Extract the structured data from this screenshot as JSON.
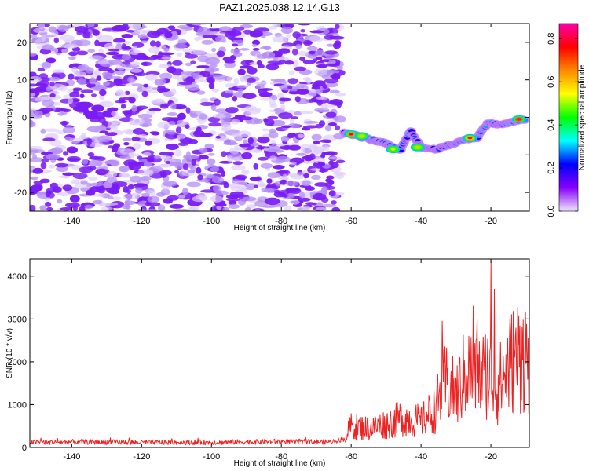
{
  "figure": {
    "title": "PAZ1.2025.038.12.14.G13"
  },
  "chart_data": [
    {
      "type": "heatmap",
      "xlabel": "Height of straight line (km)",
      "ylabel": "Frequency (Hz)",
      "xlim": [
        -152,
        -9
      ],
      "ylim": [
        -25,
        25
      ],
      "xticks": [
        -140,
        -120,
        -100,
        -80,
        -60,
        -40,
        -20
      ],
      "yticks": [
        -20,
        -10,
        0,
        10,
        20
      ],
      "colorbar": {
        "label": "Normalized spectral amplitude",
        "range": [
          0.0,
          0.87
        ],
        "ticks": [
          0.0,
          0.2,
          0.4,
          0.6,
          0.8
        ],
        "colormap": [
          "#f0e6ff",
          "#8800ff",
          "#0000ff",
          "#00ffff",
          "#00ff00",
          "#ffff00",
          "#ff8800",
          "#ff0000",
          "#ff00aa"
        ]
      },
      "noise_region": {
        "x_range": [
          -152,
          -63
        ],
        "amplitude_range": [
          0.02,
          0.15
        ]
      },
      "signal_ridge": [
        {
          "x": -62,
          "freq": -4.0
        },
        {
          "x": -58,
          "freq": -5.0
        },
        {
          "x": -54,
          "freq": -6.0
        },
        {
          "x": -50,
          "freq": -7.0
        },
        {
          "x": -46,
          "freq": -9.0
        },
        {
          "x": -43,
          "freq": -3.5
        },
        {
          "x": -40,
          "freq": -8.0
        },
        {
          "x": -36,
          "freq": -8.5
        },
        {
          "x": -32,
          "freq": -7.5
        },
        {
          "x": -28,
          "freq": -6.0
        },
        {
          "x": -24,
          "freq": -5.5
        },
        {
          "x": -21,
          "freq": -1.5
        },
        {
          "x": -17,
          "freq": -2.0
        },
        {
          "x": -13,
          "freq": -1.0
        },
        {
          "x": -10,
          "freq": -0.5
        }
      ],
      "hotspots": [
        {
          "x": -60,
          "freq": -4.5,
          "amp": 0.8
        },
        {
          "x": -57,
          "freq": -5.0,
          "amp": 0.6
        },
        {
          "x": -48,
          "freq": -8.5,
          "amp": 0.55
        },
        {
          "x": -41,
          "freq": -8.0,
          "amp": 0.6
        },
        {
          "x": -26,
          "freq": -5.5,
          "amp": 0.75
        },
        {
          "x": -12,
          "freq": -0.5,
          "amp": 0.87
        }
      ]
    },
    {
      "type": "line",
      "xlabel": "Height of straight line (km)",
      "ylabel": "SNR (10 * v/v)",
      "xlim": [
        -152,
        -9
      ],
      "ylim": [
        0,
        4400
      ],
      "xticks": [
        -140,
        -120,
        -100,
        -80,
        -60,
        -40,
        -20
      ],
      "yticks": [
        0,
        1000,
        2000,
        3000,
        4000
      ],
      "series": [
        {
          "color": "#ee2222",
          "anchors": [
            {
              "x": -152,
              "y": 120
            },
            {
              "x": -140,
              "y": 130
            },
            {
              "x": -120,
              "y": 120
            },
            {
              "x": -100,
              "y": 120
            },
            {
              "x": -80,
              "y": 140
            },
            {
              "x": -66,
              "y": 130
            },
            {
              "x": -62,
              "y": 200
            },
            {
              "x": -60,
              "y": 500
            },
            {
              "x": -55,
              "y": 450
            },
            {
              "x": -50,
              "y": 550
            },
            {
              "x": -45,
              "y": 700
            },
            {
              "x": -40,
              "y": 600
            },
            {
              "x": -36,
              "y": 900
            },
            {
              "x": -33,
              "y": 1500
            },
            {
              "x": -30,
              "y": 1200
            },
            {
              "x": -27,
              "y": 1800
            },
            {
              "x": -24,
              "y": 1600
            },
            {
              "x": -21,
              "y": 1800
            },
            {
              "x": -18,
              "y": 1400
            },
            {
              "x": -15,
              "y": 1900
            },
            {
              "x": -12,
              "y": 2200
            },
            {
              "x": -9,
              "y": 2100
            }
          ],
          "peaks": [
            {
              "x": -34,
              "y": 2950
            },
            {
              "x": -25,
              "y": 3300
            },
            {
              "x": -24,
              "y": 3000
            },
            {
              "x": -20,
              "y": 4350
            },
            {
              "x": -19,
              "y": 3700
            },
            {
              "x": -13,
              "y": 2600
            },
            {
              "x": -11,
              "y": 2800
            }
          ]
        }
      ]
    }
  ]
}
